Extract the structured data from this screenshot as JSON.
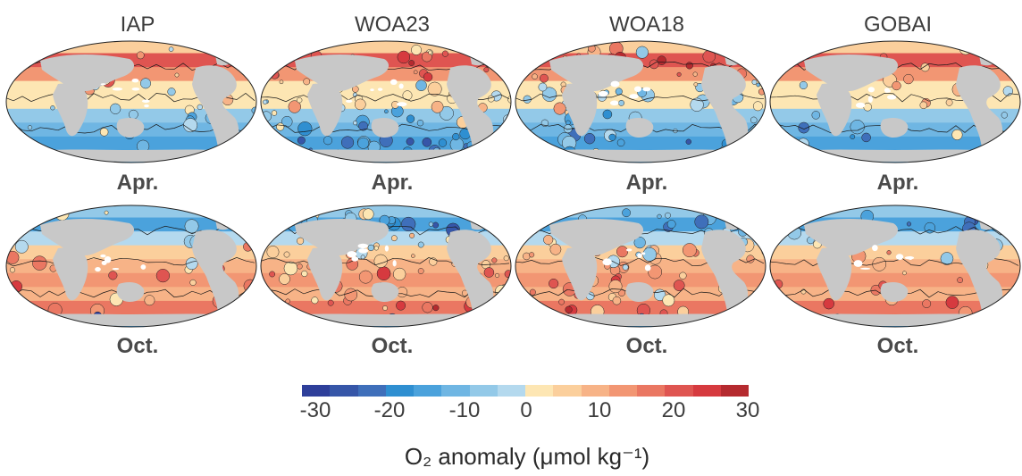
{
  "columns": [
    {
      "title": "IAP"
    },
    {
      "title": "WOA23"
    },
    {
      "title": "WOA18"
    },
    {
      "title": "GOBAI"
    }
  ],
  "rows": [
    {
      "month": "Apr."
    },
    {
      "month": "Oct."
    }
  ],
  "colorbar": {
    "ticks": [
      "-30",
      "-20",
      "-10",
      "0",
      "10",
      "20",
      "30"
    ],
    "label": "O₂ anomaly (μmol kg⁻¹)",
    "range": [
      -30,
      30
    ],
    "colors": [
      "#2e3f9a",
      "#3656a8",
      "#3f6fba",
      "#2f8fd1",
      "#4ba2dc",
      "#6fb6e3",
      "#93c9e8",
      "#b4d9ee",
      "#fde6b3",
      "#fbcf9c",
      "#f7b387",
      "#f29673",
      "#ea7762",
      "#df5551",
      "#d63a3f",
      "#b52a2f"
    ]
  },
  "land_color": "#c8c8c8"
}
